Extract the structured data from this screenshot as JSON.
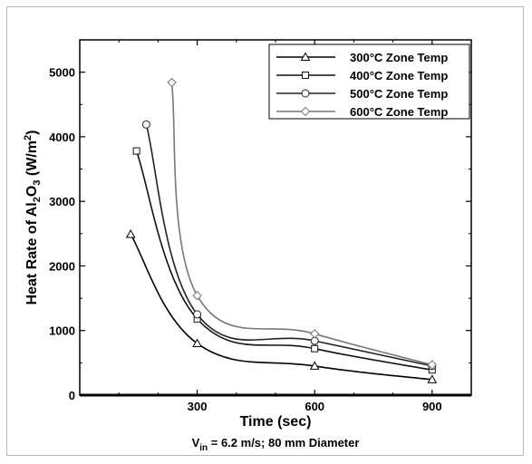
{
  "chart_data": {
    "type": "line",
    "xlabel": "Time (sec)",
    "ylabel_parts": {
      "pre": "Heat Rate of Al",
      "sub1": "2",
      "mid": "O",
      "sub2": "3",
      "post": " (W/m",
      "sup": "2",
      "end": ")"
    },
    "caption_parts": {
      "pre": "V",
      "sub": "in",
      "post": " = 6.2 m/s; 80 mm Diameter"
    },
    "xlim": [
      0,
      1000
    ],
    "ylim": [
      0,
      5500
    ],
    "x_ticks": [
      300,
      600,
      900
    ],
    "y_ticks": [
      0,
      1000,
      2000,
      3000,
      4000,
      5000
    ],
    "grid": false,
    "legend_position": "top-right",
    "series": [
      {
        "name": "300°C Zone Temp",
        "marker": "triangle",
        "color": "#000000",
        "points": [
          [
            130,
            2490
          ],
          [
            300,
            800
          ],
          [
            600,
            450
          ],
          [
            900,
            240
          ]
        ]
      },
      {
        "name": "400°C Zone Temp",
        "marker": "square",
        "color": "#111111",
        "points": [
          [
            145,
            3780
          ],
          [
            300,
            1180
          ],
          [
            600,
            720
          ],
          [
            900,
            390
          ]
        ]
      },
      {
        "name": "500°C Zone Temp",
        "marker": "circle",
        "color": "#222222",
        "points": [
          [
            170,
            4190
          ],
          [
            300,
            1250
          ],
          [
            600,
            840
          ],
          [
            900,
            450
          ]
        ]
      },
      {
        "name": "600°C Zone Temp",
        "marker": "diamond",
        "color": "#777777",
        "points": [
          [
            235,
            4840
          ],
          [
            300,
            1540
          ],
          [
            600,
            950
          ],
          [
            900,
            470
          ]
        ]
      }
    ]
  }
}
